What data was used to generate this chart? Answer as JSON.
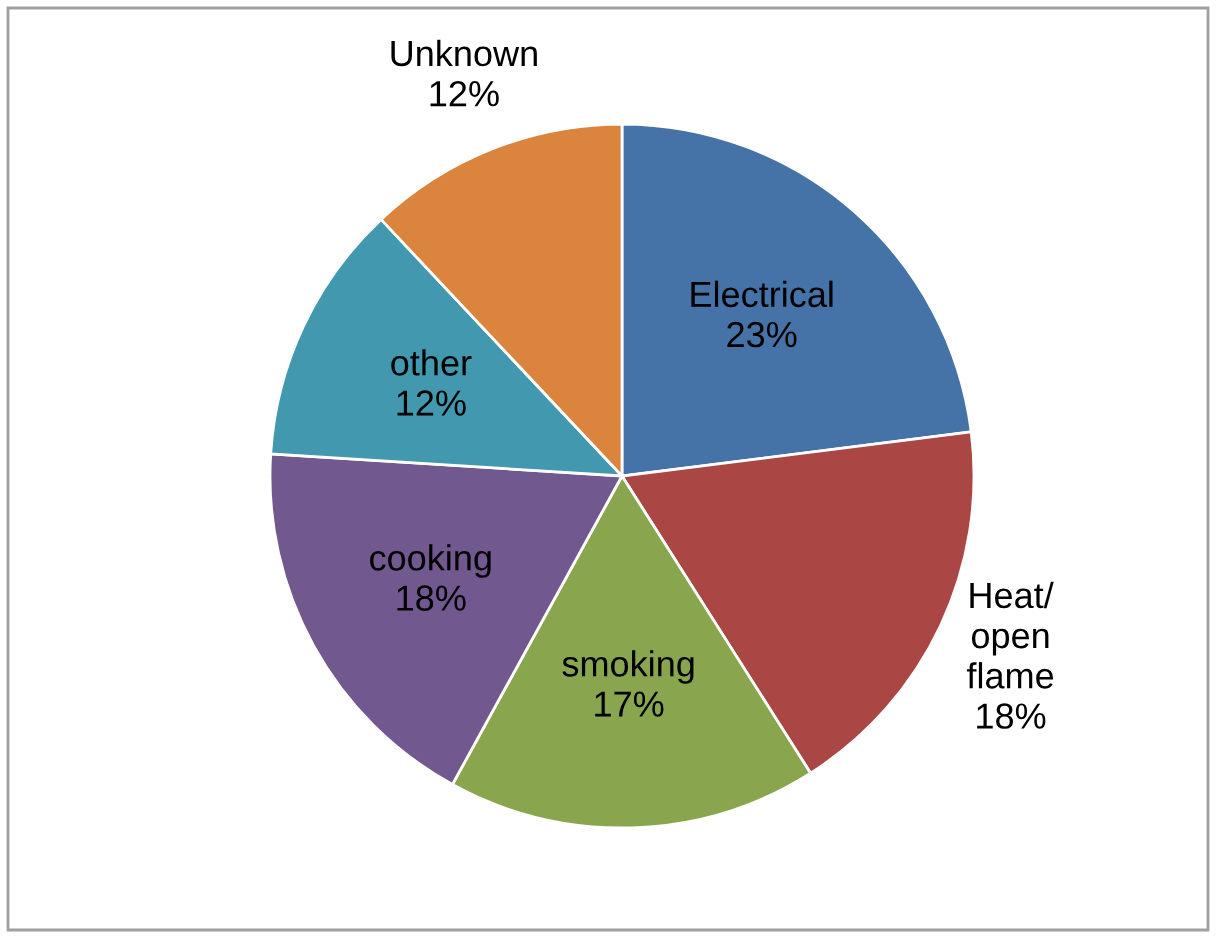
{
  "chart_data": {
    "type": "pie",
    "categories": [
      "Electrical",
      "Heat/ open flame",
      "smoking",
      "cooking",
      "other",
      "Unknown"
    ],
    "values": [
      23,
      18,
      17,
      18,
      12,
      12
    ],
    "value_labels": [
      "23%",
      "18%",
      "17%",
      "18%",
      "12%",
      "12%"
    ],
    "colors": [
      "#4572a7",
      "#aa4643",
      "#89a54e",
      "#71588f",
      "#4198af",
      "#db843d"
    ],
    "legend": false
  }
}
